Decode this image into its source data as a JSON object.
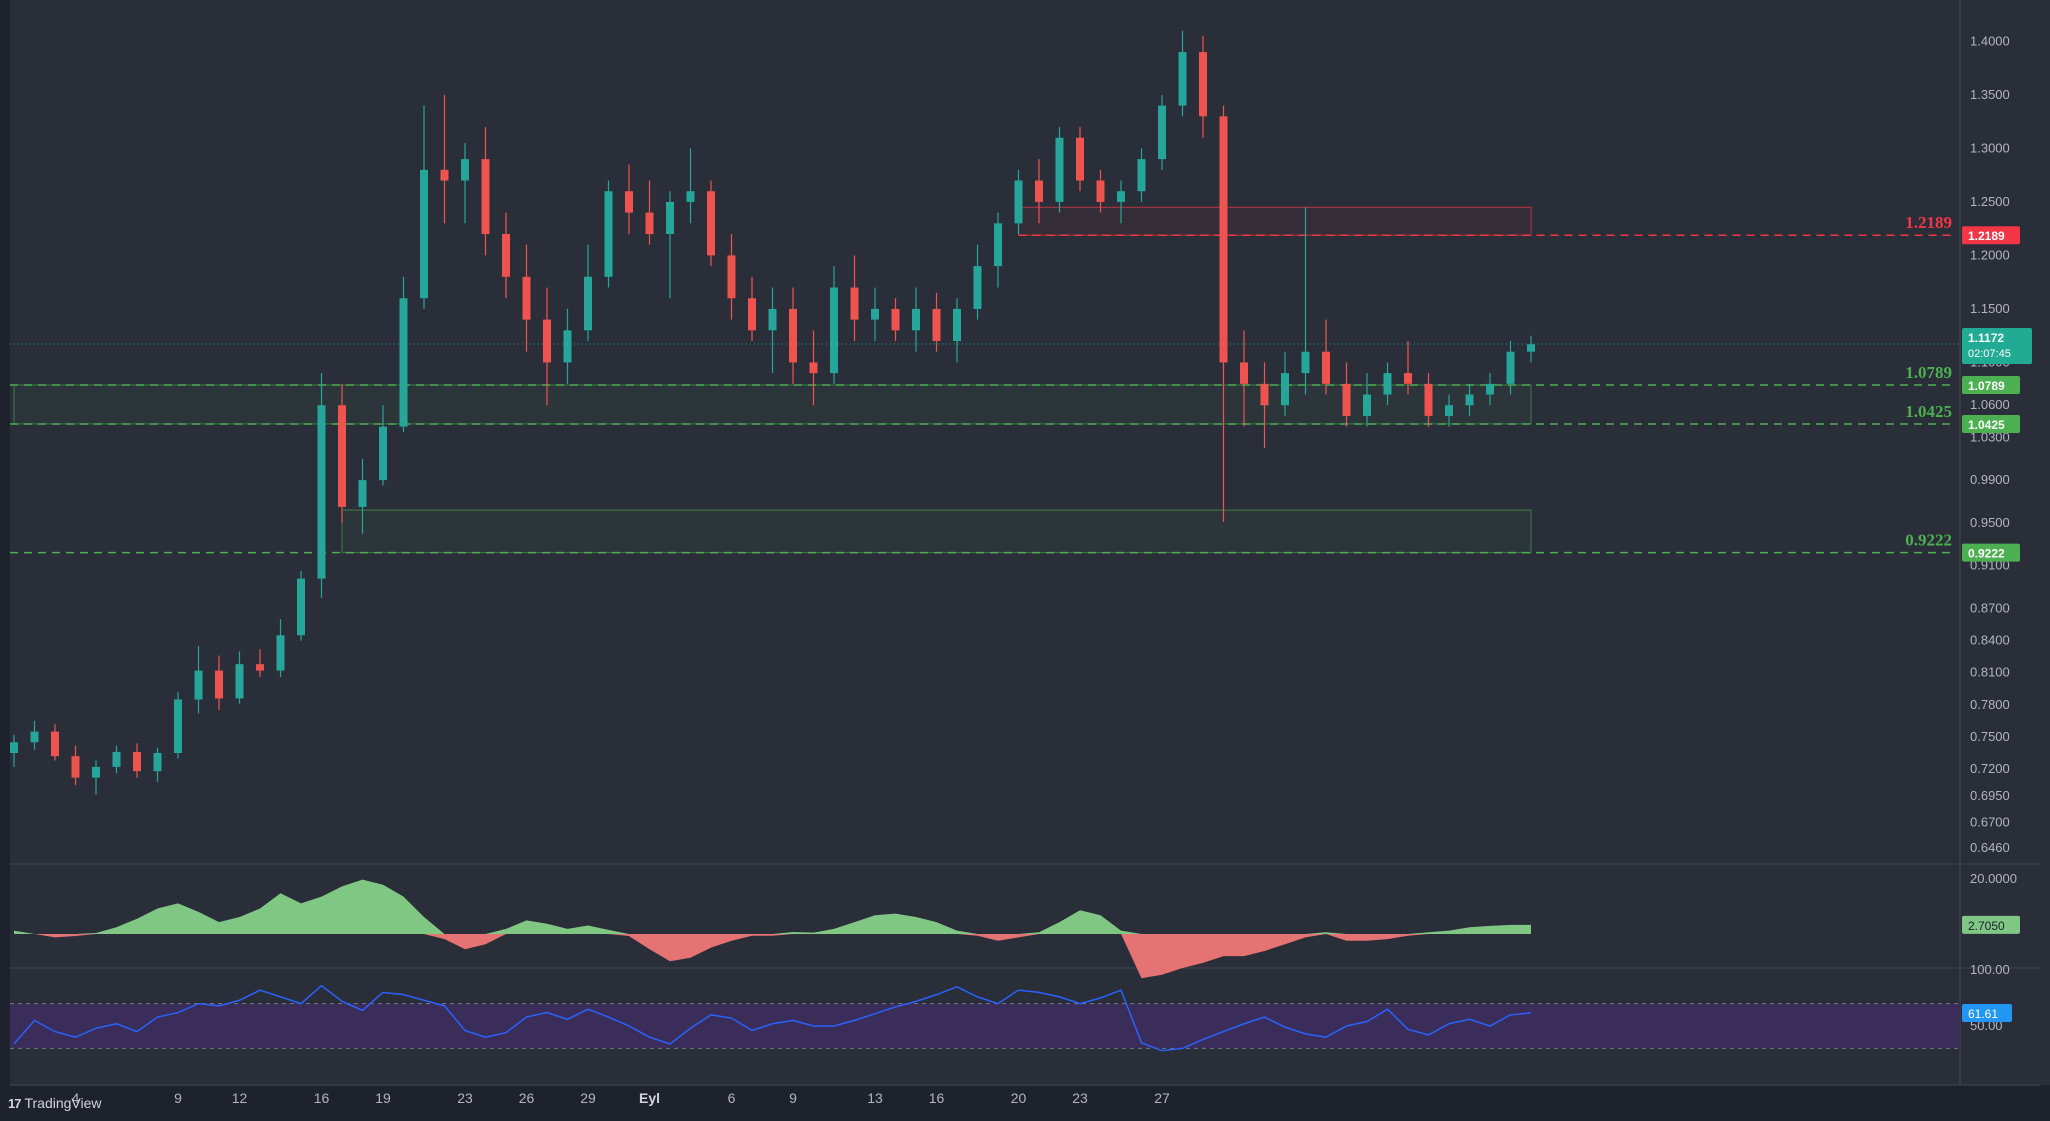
{
  "branding": {
    "name": "TradingView",
    "logo_icon": "tradingview-logo-icon"
  },
  "colors": {
    "background": "#2a2e39",
    "panel_border": "#434651",
    "up": "#26a69a",
    "down": "#ef5350",
    "axis_text": "#b2b5be",
    "support": "#4caf50",
    "resistance": "#f23645",
    "last_price": "#22ab94",
    "osc_up": "#81c784",
    "osc_down": "#e57373",
    "rsi_line": "#2962ff",
    "rsi_band": "#3b2d5a",
    "rsi_badge": "#2196f3"
  },
  "chart_data": {
    "type": "candlestick",
    "title": "",
    "price_axis": {
      "ticks": [
        "1.4000",
        "1.3500",
        "1.3000",
        "1.2500",
        "1.2000",
        "1.1500",
        "1.1000",
        "1.0600",
        "1.0300",
        "0.9900",
        "0.9500",
        "0.9100",
        "0.8700",
        "0.8400",
        "0.8100",
        "0.7800",
        "0.7500",
        "0.7200",
        "0.6950",
        "0.6700",
        "0.6460"
      ],
      "range": [
        0.635,
        1.42
      ]
    },
    "time_axis": {
      "labels": [
        "4",
        "9",
        "12",
        "16",
        "19",
        "23",
        "26",
        "29",
        "Eyl",
        "6",
        "9",
        "13",
        "16",
        "20",
        "23",
        "27"
      ],
      "label_bar_index": [
        3,
        8,
        11,
        15,
        18,
        22,
        25,
        28,
        31,
        35,
        38,
        42,
        45,
        49,
        52,
        56
      ]
    },
    "candles": [
      [
        0.735,
        0.752,
        0.722,
        0.745
      ],
      [
        0.745,
        0.765,
        0.738,
        0.755
      ],
      [
        0.755,
        0.762,
        0.728,
        0.732
      ],
      [
        0.732,
        0.742,
        0.705,
        0.712
      ],
      [
        0.712,
        0.728,
        0.696,
        0.722
      ],
      [
        0.722,
        0.742,
        0.716,
        0.736
      ],
      [
        0.736,
        0.744,
        0.712,
        0.718
      ],
      [
        0.718,
        0.74,
        0.708,
        0.735
      ],
      [
        0.735,
        0.792,
        0.73,
        0.785
      ],
      [
        0.785,
        0.835,
        0.772,
        0.812
      ],
      [
        0.812,
        0.826,
        0.775,
        0.786
      ],
      [
        0.786,
        0.83,
        0.781,
        0.818
      ],
      [
        0.818,
        0.832,
        0.806,
        0.812
      ],
      [
        0.812,
        0.86,
        0.806,
        0.845
      ],
      [
        0.845,
        0.905,
        0.84,
        0.898
      ],
      [
        0.898,
        1.09,
        0.88,
        1.06
      ],
      [
        1.06,
        1.08,
        0.95,
        0.965
      ],
      [
        0.965,
        1.01,
        0.94,
        0.99
      ],
      [
        0.99,
        1.06,
        0.985,
        1.04
      ],
      [
        1.04,
        1.18,
        1.035,
        1.16
      ],
      [
        1.16,
        1.34,
        1.15,
        1.28
      ],
      [
        1.28,
        1.35,
        1.23,
        1.27
      ],
      [
        1.27,
        1.305,
        1.23,
        1.29
      ],
      [
        1.29,
        1.32,
        1.2,
        1.22
      ],
      [
        1.22,
        1.24,
        1.16,
        1.18
      ],
      [
        1.18,
        1.21,
        1.11,
        1.14
      ],
      [
        1.14,
        1.17,
        1.06,
        1.1
      ],
      [
        1.1,
        1.15,
        1.08,
        1.13
      ],
      [
        1.13,
        1.21,
        1.12,
        1.18
      ],
      [
        1.18,
        1.27,
        1.17,
        1.26
      ],
      [
        1.26,
        1.285,
        1.22,
        1.24
      ],
      [
        1.24,
        1.27,
        1.21,
        1.22
      ],
      [
        1.22,
        1.26,
        1.16,
        1.25
      ],
      [
        1.25,
        1.3,
        1.23,
        1.26
      ],
      [
        1.26,
        1.27,
        1.19,
        1.2
      ],
      [
        1.2,
        1.22,
        1.14,
        1.16
      ],
      [
        1.16,
        1.18,
        1.12,
        1.13
      ],
      [
        1.13,
        1.17,
        1.09,
        1.15
      ],
      [
        1.15,
        1.17,
        1.08,
        1.1
      ],
      [
        1.1,
        1.13,
        1.06,
        1.09
      ],
      [
        1.09,
        1.19,
        1.08,
        1.17
      ],
      [
        1.17,
        1.2,
        1.12,
        1.14
      ],
      [
        1.14,
        1.17,
        1.12,
        1.15
      ],
      [
        1.15,
        1.16,
        1.12,
        1.13
      ],
      [
        1.13,
        1.17,
        1.11,
        1.15
      ],
      [
        1.15,
        1.165,
        1.11,
        1.12
      ],
      [
        1.12,
        1.16,
        1.1,
        1.15
      ],
      [
        1.15,
        1.21,
        1.14,
        1.19
      ],
      [
        1.19,
        1.24,
        1.17,
        1.23
      ],
      [
        1.23,
        1.28,
        1.22,
        1.27
      ],
      [
        1.27,
        1.29,
        1.23,
        1.25
      ],
      [
        1.25,
        1.32,
        1.24,
        1.31
      ],
      [
        1.31,
        1.32,
        1.26,
        1.27
      ],
      [
        1.27,
        1.28,
        1.24,
        1.25
      ],
      [
        1.25,
        1.27,
        1.23,
        1.26
      ],
      [
        1.26,
        1.3,
        1.25,
        1.29
      ],
      [
        1.29,
        1.35,
        1.28,
        1.34
      ],
      [
        1.34,
        1.41,
        1.33,
        1.39
      ],
      [
        1.39,
        1.405,
        1.31,
        1.33
      ],
      [
        1.33,
        1.34,
        0.951,
        1.1
      ],
      [
        1.1,
        1.13,
        1.04,
        1.08
      ],
      [
        1.08,
        1.1,
        1.02,
        1.06
      ],
      [
        1.06,
        1.11,
        1.05,
        1.09
      ],
      [
        1.09,
        1.245,
        1.07,
        1.11
      ],
      [
        1.11,
        1.14,
        1.07,
        1.08
      ],
      [
        1.08,
        1.1,
        1.04,
        1.05
      ],
      [
        1.05,
        1.09,
        1.04,
        1.07
      ],
      [
        1.07,
        1.1,
        1.06,
        1.09
      ],
      [
        1.09,
        1.12,
        1.07,
        1.08
      ],
      [
        1.08,
        1.09,
        1.04,
        1.05
      ],
      [
        1.05,
        1.07,
        1.04,
        1.06
      ],
      [
        1.06,
        1.08,
        1.05,
        1.07
      ],
      [
        1.07,
        1.09,
        1.06,
        1.08
      ],
      [
        1.08,
        1.12,
        1.07,
        1.11
      ],
      [
        1.11,
        1.125,
        1.1,
        1.117
      ]
    ],
    "levels": [
      {
        "name": "resistance",
        "label": "1.2189",
        "value": 1.2189
      },
      {
        "name": "support-upper",
        "label": "1.0789",
        "value": 1.0789
      },
      {
        "name": "support-lower",
        "label": "1.0425",
        "value": 1.0425
      },
      {
        "name": "support-deep",
        "label": "0.9222",
        "value": 0.9222
      }
    ],
    "zones": [
      {
        "name": "supply-zone",
        "top": 1.245,
        "bottom": 1.2189,
        "start_bar": 49,
        "end_bar": 74
      },
      {
        "name": "demand-zone-upper",
        "top": 1.0789,
        "bottom": 1.0425,
        "start_bar": 0,
        "end_bar": 74
      },
      {
        "name": "demand-zone-lower",
        "top": 0.962,
        "bottom": 0.9222,
        "start_bar": 16,
        "end_bar": 74
      }
    ],
    "last_price": {
      "value": 1.1172,
      "label": "1.1172",
      "countdown": "02:07:45"
    },
    "oscillator": {
      "axis_label": "20.0000",
      "current_label": "2.7050",
      "range": [
        -10,
        20
      ],
      "values": [
        1.0,
        0.0,
        -1.0,
        -0.6,
        0.3,
        2.0,
        4.5,
        7.5,
        9.0,
        6.5,
        3.5,
        5.0,
        7.5,
        12.0,
        9.0,
        11.0,
        14.0,
        16.0,
        14.5,
        11.0,
        5.0,
        -1.5,
        -4.5,
        -3.0,
        1.5,
        4.0,
        3.0,
        1.5,
        2.5,
        1.2,
        -0.6,
        -4.5,
        -8.0,
        -7.0,
        -4.0,
        -2.0,
        -0.5,
        -0.5,
        0.6,
        0.4,
        1.5,
        3.5,
        5.5,
        6.0,
        5.0,
        3.5,
        1.0,
        -0.5,
        -2.0,
        -1.0,
        0.5,
        3.5,
        7.0,
        5.5,
        1.0,
        -13.0,
        -12.0,
        -10.0,
        -8.5,
        -6.5,
        -6.5,
        -5.0,
        -3.0,
        -1.0,
        0.5,
        -2.0,
        -2.0,
        -1.5,
        -0.5,
        0.5,
        1.0,
        2.0,
        2.4,
        2.7,
        2.7
      ]
    },
    "rsi": {
      "axis_labels": [
        "100.00",
        "50.00"
      ],
      "current_label": "61.61",
      "upper_band": 70,
      "lower_band": 30,
      "range": [
        0,
        100
      ],
      "values": [
        34,
        55,
        45,
        40,
        48,
        52,
        45,
        58,
        62,
        70,
        68,
        73,
        82,
        76,
        70,
        86,
        72,
        64,
        80,
        78,
        73,
        68,
        46,
        40,
        44,
        58,
        62,
        56,
        65,
        58,
        50,
        40,
        34,
        48,
        60,
        57,
        46,
        52,
        55,
        50,
        50,
        55,
        61,
        67,
        72,
        78,
        85,
        76,
        70,
        82,
        80,
        76,
        70,
        75,
        82,
        35,
        28,
        30,
        38,
        45,
        52,
        58,
        49,
        43,
        40,
        50,
        54,
        65,
        47,
        42,
        52,
        56,
        50,
        60,
        61.61
      ]
    }
  }
}
